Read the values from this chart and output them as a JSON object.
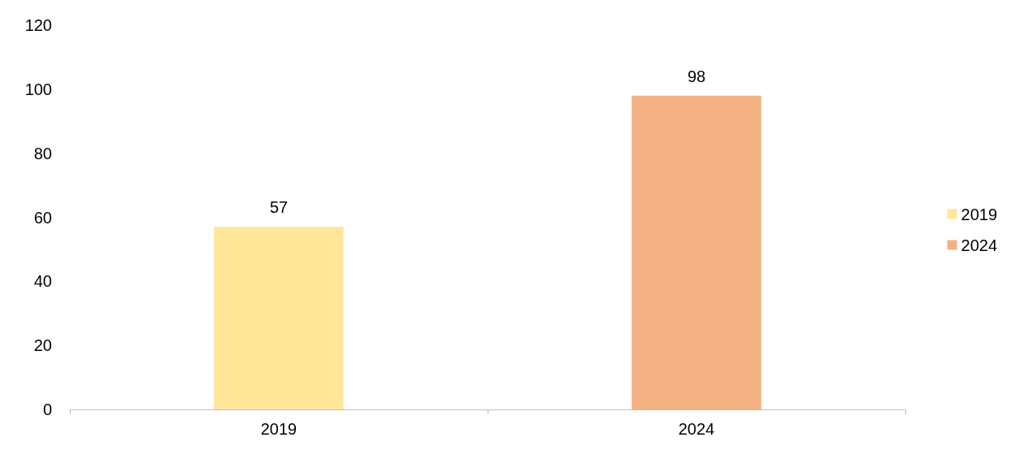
{
  "chart_data": {
    "type": "bar",
    "categories": [
      "2019",
      "2024"
    ],
    "series": [
      {
        "name": "2019",
        "color": "#ffe699",
        "values": [
          57,
          null
        ]
      },
      {
        "name": "2024",
        "color": "#f4b183",
        "values": [
          null,
          98
        ]
      }
    ],
    "ylim": [
      0,
      120
    ],
    "yticks": [
      0,
      20,
      40,
      60,
      80,
      100,
      120
    ],
    "grid": false,
    "legend": "right",
    "data_labels": true
  }
}
